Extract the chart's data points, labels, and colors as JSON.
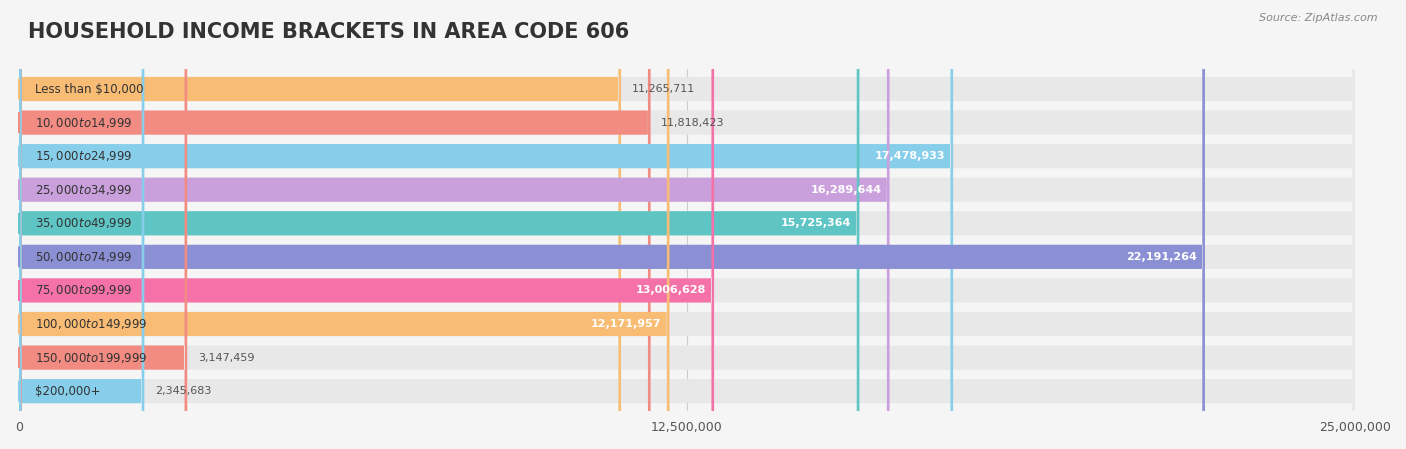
{
  "title": "HOUSEHOLD INCOME BRACKETS IN AREA CODE 606",
  "source": "Source: ZipAtlas.com",
  "categories": [
    "Less than $10,000",
    "$10,000 to $14,999",
    "$15,000 to $24,999",
    "$25,000 to $34,999",
    "$35,000 to $49,999",
    "$50,000 to $74,999",
    "$75,000 to $99,999",
    "$100,000 to $149,999",
    "$150,000 to $199,999",
    "$200,000+"
  ],
  "values": [
    11265711,
    11818423,
    17478933,
    16289644,
    15725364,
    22191264,
    13006628,
    12171957,
    3147459,
    2345683
  ],
  "bar_colors": [
    "#F9BC74",
    "#F28B82",
    "#87CEEB",
    "#C9A0DC",
    "#5EC4C4",
    "#8B8FD4",
    "#F472A8",
    "#F9BC74",
    "#F28B82",
    "#87CEEB"
  ],
  "label_colors": [
    "#555555",
    "#555555",
    "#ffffff",
    "#ffffff",
    "#ffffff",
    "#ffffff",
    "#555555",
    "#555555",
    "#555555",
    "#555555"
  ],
  "xlim": [
    0,
    25000000
  ],
  "xticks": [
    0,
    12500000,
    25000000
  ],
  "xtick_labels": [
    "0",
    "12,500,000",
    "25,000,000"
  ],
  "bg_color": "#f5f5f5",
  "bar_bg_color": "#e8e8e8",
  "title_fontsize": 15,
  "bar_height": 0.72,
  "value_threshold": 12000000
}
